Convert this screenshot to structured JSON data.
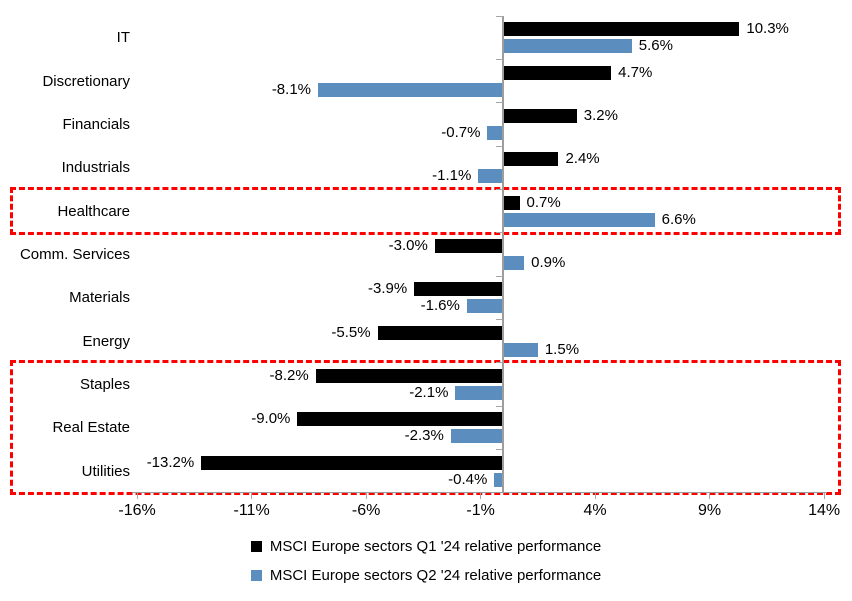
{
  "chart_data": {
    "type": "bar",
    "orientation": "horizontal",
    "title": "",
    "categories": [
      "IT",
      "Discretionary",
      "Financials",
      "Industrials",
      "Healthcare",
      "Comm. Services",
      "Materials",
      "Energy",
      "Staples",
      "Real Estate",
      "Utilities"
    ],
    "series": [
      {
        "key": "q1",
        "name": "MSCI Europe sectors Q1 '24 relative performance",
        "color": "#000000",
        "values": [
          10.3,
          4.7,
          3.2,
          2.4,
          0.7,
          -3.0,
          -3.9,
          -5.5,
          -8.2,
          -9.0,
          -13.2
        ],
        "labels": [
          "10.3%",
          "4.7%",
          "3.2%",
          "2.4%",
          "0.7%",
          "-3.0%",
          "-3.9%",
          "-5.5%",
          "-8.2%",
          "-9.0%",
          "-13.2%"
        ]
      },
      {
        "key": "q2",
        "name": "MSCI Europe sectors Q2 '24 relative performance",
        "color": "#5b8dbe",
        "values": [
          5.6,
          -8.1,
          -0.7,
          -1.1,
          6.6,
          0.9,
          -1.6,
          1.5,
          -2.1,
          -2.3,
          -0.4
        ],
        "labels": [
          "5.6%",
          "-8.1%",
          "-0.7%",
          "-1.1%",
          "6.6%",
          "0.9%",
          "-1.6%",
          "1.5%",
          "-2.1%",
          "-2.3%",
          "-0.4%"
        ]
      }
    ],
    "x_ticks": [
      {
        "label": "-16%",
        "value": -16
      },
      {
        "label": "-11%",
        "value": -11
      },
      {
        "label": "-6%",
        "value": -6
      },
      {
        "label": "-1%",
        "value": -1
      },
      {
        "label": "4%",
        "value": 4
      },
      {
        "label": "9%",
        "value": 9
      },
      {
        "label": "14%",
        "value": 14
      }
    ],
    "xlim": [
      -18,
      15.5
    ],
    "grid": false,
    "legend_position": "bottom",
    "axis_color": "#a6a6a6",
    "highlight_color": "#ff0000",
    "highlights": [
      {
        "categories": [
          "Healthcare"
        ]
      },
      {
        "categories": [
          "Staples",
          "Real Estate",
          "Utilities"
        ]
      }
    ]
  }
}
